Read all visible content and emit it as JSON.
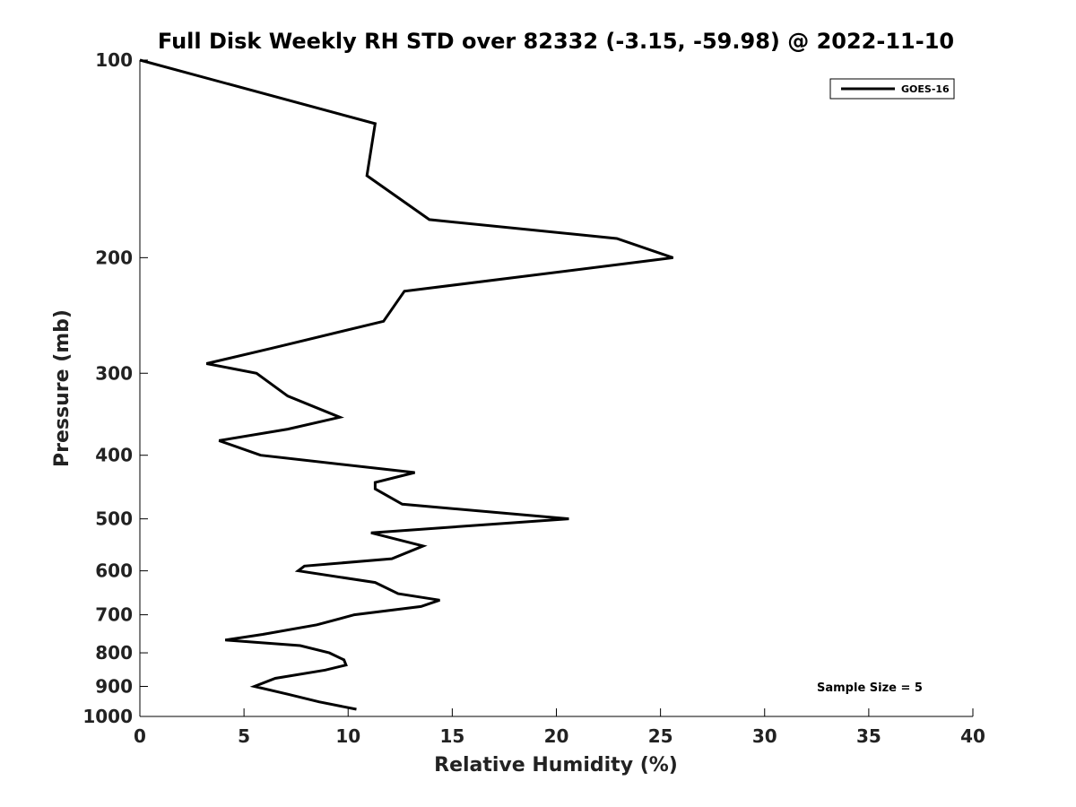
{
  "chart_data": {
    "type": "line",
    "title": "Full Disk Weekly RH STD over 82332 (-3.15, -59.98) @ 2022-11-10",
    "xlabel": "Relative Humidity (%)",
    "ylabel": "Pressure (mb)",
    "xlim": [
      0,
      40
    ],
    "ylim": [
      100,
      1000
    ],
    "y_scale": "log",
    "y_inverted": true,
    "x_ticks": [
      0,
      5,
      10,
      15,
      20,
      25,
      30,
      35,
      40
    ],
    "y_ticks": [
      100,
      200,
      300,
      400,
      500,
      600,
      700,
      800,
      900,
      1000
    ],
    "legend": {
      "position": "top-right",
      "entries": [
        "GOES-16"
      ]
    },
    "annotation": "Sample Size = 5",
    "series": [
      {
        "name": "GOES-16",
        "color": "#000000",
        "points": [
          [
            0.0,
            100
          ],
          [
            11.3,
            125
          ],
          [
            10.9,
            150
          ],
          [
            13.9,
            175
          ],
          [
            22.9,
            187
          ],
          [
            25.6,
            200
          ],
          [
            12.7,
            225
          ],
          [
            11.7,
            250
          ],
          [
            6.3,
            275
          ],
          [
            3.2,
            290
          ],
          [
            5.6,
            300
          ],
          [
            7.1,
            325
          ],
          [
            9.6,
            350
          ],
          [
            7.1,
            365
          ],
          [
            3.8,
            380
          ],
          [
            5.8,
            400
          ],
          [
            13.2,
            425
          ],
          [
            11.3,
            440
          ],
          [
            11.3,
            450
          ],
          [
            12.6,
            475
          ],
          [
            20.6,
            500
          ],
          [
            11.1,
            525
          ],
          [
            13.6,
            550
          ],
          [
            12.1,
            575
          ],
          [
            7.9,
            590
          ],
          [
            7.6,
            600
          ],
          [
            11.3,
            625
          ],
          [
            12.4,
            650
          ],
          [
            14.4,
            665
          ],
          [
            13.5,
            680
          ],
          [
            10.3,
            700
          ],
          [
            8.5,
            725
          ],
          [
            5.9,
            750
          ],
          [
            4.1,
            765
          ],
          [
            7.7,
            780
          ],
          [
            9.1,
            800
          ],
          [
            9.8,
            820
          ],
          [
            9.9,
            835
          ],
          [
            8.9,
            850
          ],
          [
            6.5,
            875
          ],
          [
            5.5,
            900
          ],
          [
            7.1,
            925
          ],
          [
            8.6,
            950
          ],
          [
            10.4,
            975
          ]
        ]
      }
    ]
  }
}
